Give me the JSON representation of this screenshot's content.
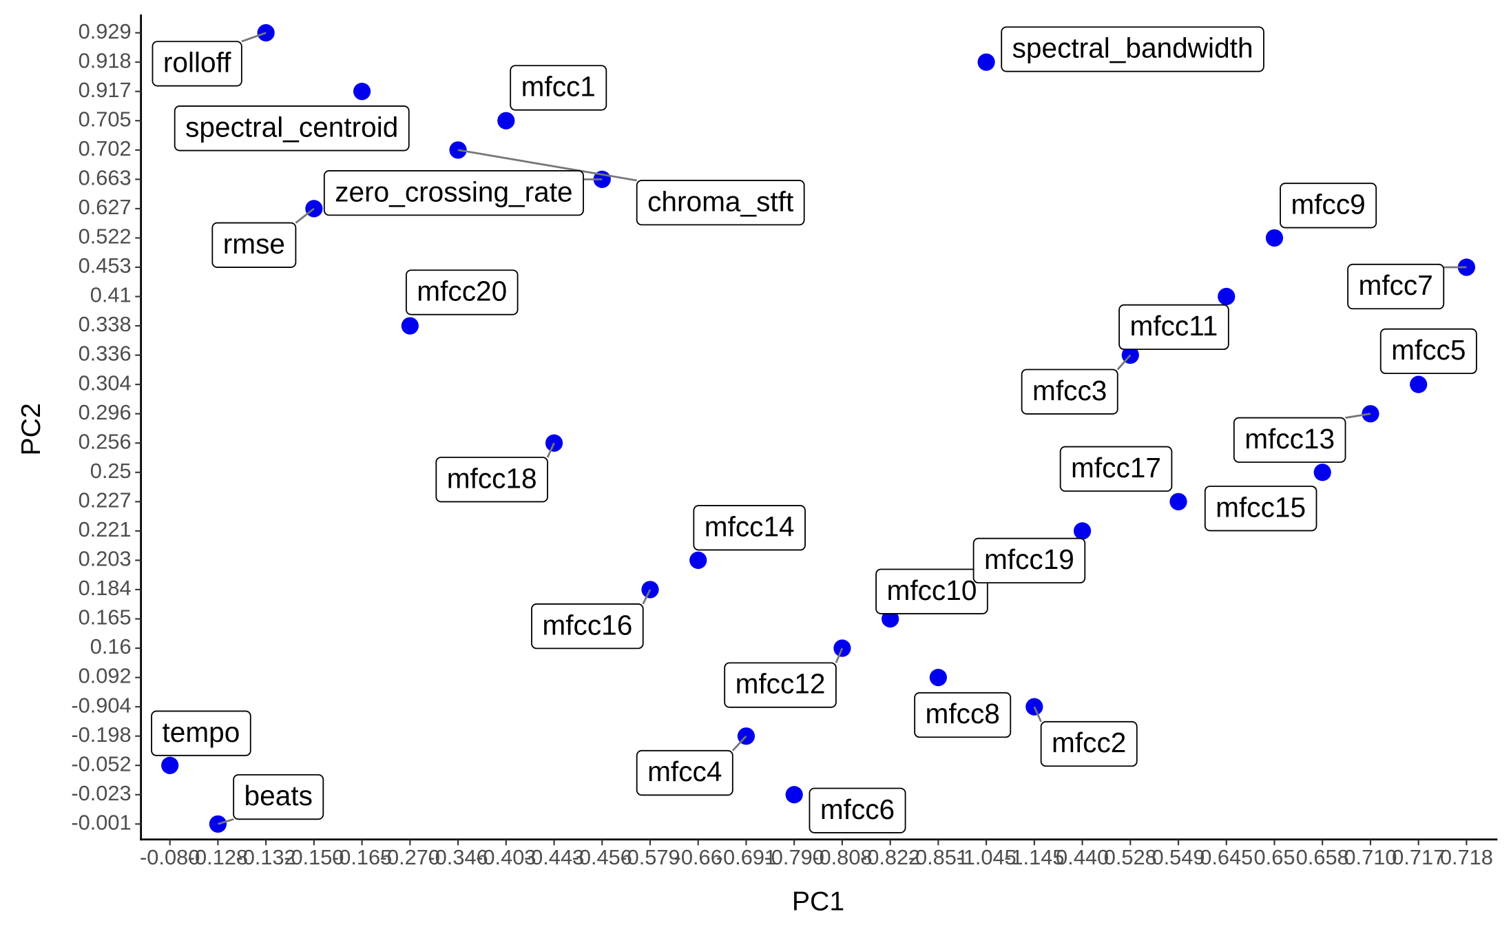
{
  "chart_data": {
    "type": "scatter",
    "x_label": "PC1",
    "y_label": "PC2",
    "categories": [
      "-0.080",
      "-0.128",
      "-0.132",
      "-0.150",
      "-0.165",
      "-0.270",
      "-0.346",
      "-0.403",
      "-0.443",
      "-0.456",
      "-0.579",
      "-0.66",
      "-0.691",
      "-0.790",
      "-0.808",
      "-0.822",
      "-0.851",
      "-1.045",
      "-1.145",
      "0.440",
      "0.528",
      "0.549",
      "0.645",
      "0.65",
      "0.658",
      "0.710",
      "0.717",
      "0.718"
    ],
    "y_categories": [
      "-0.001",
      "-0.023",
      "-0.052",
      "-0.198",
      "-0.904",
      "0.092",
      "0.16",
      "0.165",
      "0.184",
      "0.203",
      "0.221",
      "0.227",
      "0.25",
      "0.256",
      "0.296",
      "0.304",
      "0.336",
      "0.338",
      "0.41",
      "0.453",
      "0.522",
      "0.627",
      "0.663",
      "0.702",
      "0.705",
      "0.917",
      "0.918",
      "0.929"
    ],
    "color": "#0000ee",
    "points": [
      {
        "label": "tempo",
        "x": "-0.080",
        "y": "-0.052"
      },
      {
        "label": "beats",
        "x": "-0.128",
        "y": "-0.001"
      },
      {
        "label": "rolloff",
        "x": "-0.132",
        "y": "0.929"
      },
      {
        "label": "rmse",
        "x": "-0.150",
        "y": "0.627"
      },
      {
        "label": "spectral_centroid",
        "x": "-0.165",
        "y": "0.917"
      },
      {
        "label": "mfcc20",
        "x": "-0.270",
        "y": "0.338"
      },
      {
        "label": "chroma_stft",
        "x": "-0.346",
        "y": "0.702"
      },
      {
        "label": "mfcc1",
        "x": "-0.403",
        "y": "0.705"
      },
      {
        "label": "mfcc18",
        "x": "-0.443",
        "y": "0.256"
      },
      {
        "label": "zero_crossing_rate",
        "x": "-0.456",
        "y": "0.663"
      },
      {
        "label": "mfcc16",
        "x": "-0.579",
        "y": "0.184"
      },
      {
        "label": "mfcc14",
        "x": "-0.66",
        "y": "0.203"
      },
      {
        "label": "mfcc4",
        "x": "-0.691",
        "y": "-0.198"
      },
      {
        "label": "mfcc6",
        "x": "-0.790",
        "y": "-0.023"
      },
      {
        "label": "mfcc12",
        "x": "-0.808",
        "y": "0.16"
      },
      {
        "label": "mfcc10",
        "x": "-0.822",
        "y": "0.165"
      },
      {
        "label": "mfcc8",
        "x": "-0.851",
        "y": "0.092"
      },
      {
        "label": "spectral_bandwidth",
        "x": "-1.045",
        "y": "0.918"
      },
      {
        "label": "mfcc2",
        "x": "-1.145",
        "y": "-0.904"
      },
      {
        "label": "mfcc19",
        "x": "0.440",
        "y": "0.221"
      },
      {
        "label": "mfcc3",
        "x": "0.528",
        "y": "0.336"
      },
      {
        "label": "mfcc17",
        "x": "0.549",
        "y": "0.227"
      },
      {
        "label": "mfcc11",
        "x": "0.645",
        "y": "0.41"
      },
      {
        "label": "mfcc9",
        "x": "0.65",
        "y": "0.522"
      },
      {
        "label": "mfcc15",
        "x": "0.658",
        "y": "0.25"
      },
      {
        "label": "mfcc13",
        "x": "0.710",
        "y": "0.296"
      },
      {
        "label": "mfcc5",
        "x": "0.717",
        "y": "0.304"
      },
      {
        "label": "mfcc7",
        "x": "0.718",
        "y": "0.453"
      }
    ]
  }
}
